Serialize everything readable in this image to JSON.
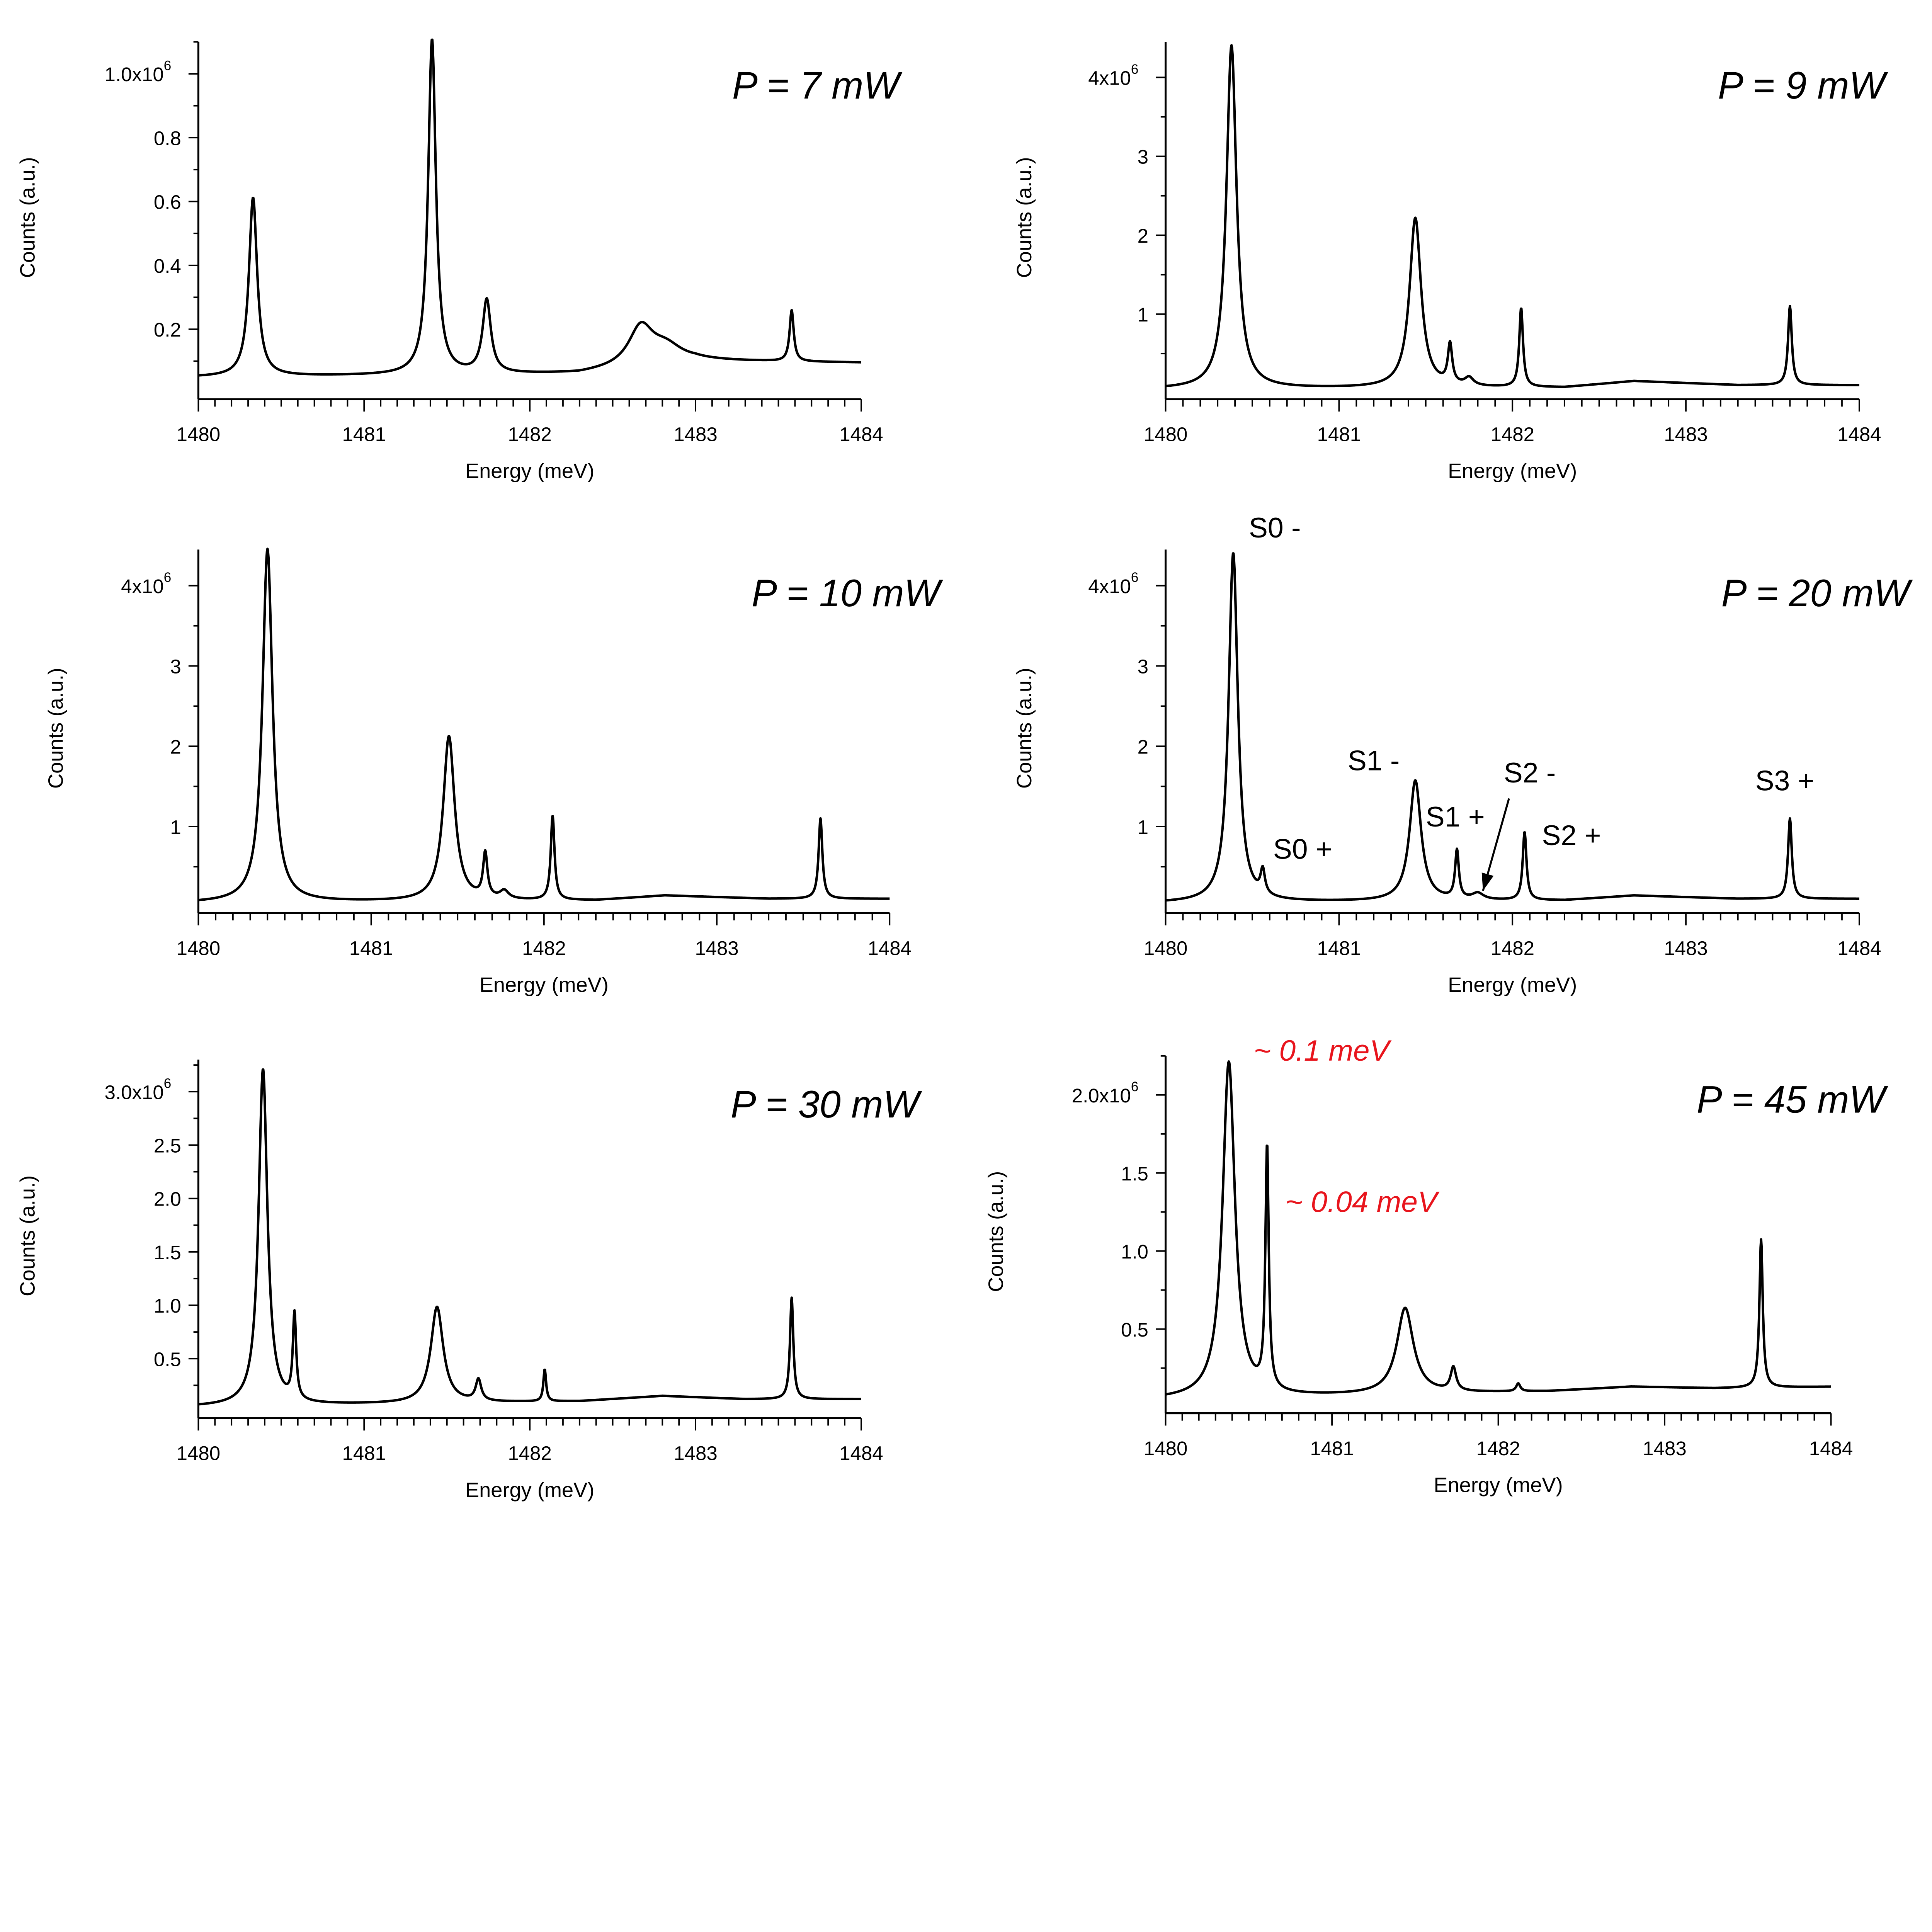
{
  "figure": {
    "colors": {
      "trace": "#000000",
      "annotation_red": "#e8141c"
    }
  },
  "chart_data": [
    {
      "type": "line",
      "title": "P = 7 mW",
      "xlabel": "Energy (meV)",
      "ylabel": "Counts (a.u.)",
      "xlim": [
        1480,
        1484
      ],
      "ylim": [
        0.0,
        1.1
      ],
      "x_ticks": [
        {
          "v": 1480,
          "label": "1480"
        },
        {
          "v": 1481,
          "label": "1481"
        },
        {
          "v": 1482,
          "label": "1482"
        },
        {
          "v": 1483,
          "label": "1483"
        },
        {
          "v": 1484,
          "label": "1484"
        }
      ],
      "y_ticks": [
        {
          "v": 0.2,
          "label": "0.2"
        },
        {
          "v": 0.4,
          "label": "0.4"
        },
        {
          "v": 0.6,
          "label": "0.6"
        },
        {
          "v": 0.8,
          "label": "0.8"
        },
        {
          "v": 1.0,
          "label": "1.0x10",
          "exp": "6"
        }
      ],
      "baseline": [
        [
          1480,
          0.05
        ],
        [
          1482.3,
          0.06
        ],
        [
          1483,
          0.1
        ],
        [
          1484,
          0.095
        ]
      ],
      "peaks": [
        {
          "x": 1480.33,
          "h": 0.56,
          "w": 0.03
        },
        {
          "x": 1481.41,
          "h": 1.05,
          "w": 0.028
        },
        {
          "x": 1481.74,
          "h": 0.23,
          "w": 0.03
        },
        {
          "x": 1482.67,
          "h": 0.12,
          "w": 0.09
        },
        {
          "x": 1482.82,
          "h": 0.05,
          "w": 0.12
        },
        {
          "x": 1483.58,
          "h": 0.16,
          "w": 0.015
        }
      ],
      "annotations": []
    },
    {
      "type": "line",
      "title": "P = 9 mW",
      "xlabel": "Energy (meV)",
      "ylabel": "Counts (a.u.)",
      "xlim": [
        1480,
        1484
      ],
      "ylim": [
        0.0,
        4.45
      ],
      "x_ticks": [
        {
          "v": 1480,
          "label": "1480"
        },
        {
          "v": 1481,
          "label": "1481"
        },
        {
          "v": 1482,
          "label": "1482"
        },
        {
          "v": 1483,
          "label": "1483"
        },
        {
          "v": 1484,
          "label": "1484"
        }
      ],
      "y_ticks": [
        {
          "v": 1,
          "label": "1"
        },
        {
          "v": 2,
          "label": "2"
        },
        {
          "v": 3,
          "label": "3"
        },
        {
          "v": 4,
          "label": "4x10",
          "exp": "6"
        }
      ],
      "baseline": [
        [
          1480,
          0.05
        ],
        [
          1482.3,
          0.07
        ],
        [
          1482.7,
          0.15
        ],
        [
          1483.3,
          0.1
        ],
        [
          1484,
          0.1
        ]
      ],
      "peaks": [
        {
          "x": 1480.38,
          "h": 4.35,
          "w": 0.035
        },
        {
          "x": 1481.44,
          "h": 2.15,
          "w": 0.04
        },
        {
          "x": 1481.64,
          "h": 0.5,
          "w": 0.015
        },
        {
          "x": 1481.75,
          "h": 0.1,
          "w": 0.03
        },
        {
          "x": 1482.05,
          "h": 1.0,
          "w": 0.013
        },
        {
          "x": 1483.6,
          "h": 1.0,
          "w": 0.013
        }
      ],
      "annotations": []
    },
    {
      "type": "line",
      "title": "P = 10 mW",
      "xlabel": "Energy (meV)",
      "ylabel": "Counts (a.u.)",
      "xlim": [
        1480,
        1484
      ],
      "ylim": [
        0.0,
        4.45
      ],
      "x_ticks": [
        {
          "v": 1480,
          "label": "1480"
        },
        {
          "v": 1481,
          "label": "1481"
        },
        {
          "v": 1482,
          "label": "1482"
        },
        {
          "v": 1483,
          "label": "1483"
        },
        {
          "v": 1484,
          "label": "1484"
        }
      ],
      "y_ticks": [
        {
          "v": 1,
          "label": "1"
        },
        {
          "v": 2,
          "label": "2"
        },
        {
          "v": 3,
          "label": "3"
        },
        {
          "v": 4,
          "label": "4x10",
          "exp": "6"
        }
      ],
      "baseline": [
        [
          1480,
          0.05
        ],
        [
          1482.3,
          0.08
        ],
        [
          1482.7,
          0.14
        ],
        [
          1483.3,
          0.1
        ],
        [
          1484,
          0.1
        ]
      ],
      "peaks": [
        {
          "x": 1480.4,
          "h": 4.4,
          "w": 0.035
        },
        {
          "x": 1481.45,
          "h": 2.05,
          "w": 0.04
        },
        {
          "x": 1481.66,
          "h": 0.55,
          "w": 0.015
        },
        {
          "x": 1481.77,
          "h": 0.1,
          "w": 0.03
        },
        {
          "x": 1482.05,
          "h": 1.05,
          "w": 0.013
        },
        {
          "x": 1483.6,
          "h": 1.0,
          "w": 0.013
        }
      ],
      "annotations": []
    },
    {
      "type": "line",
      "title": "P = 20 mW",
      "xlabel": "Energy (meV)",
      "ylabel": "Counts (a.u.)",
      "xlim": [
        1480,
        1484
      ],
      "ylim": [
        0.0,
        4.45
      ],
      "x_ticks": [
        {
          "v": 1480,
          "label": "1480"
        },
        {
          "v": 1481,
          "label": "1481"
        },
        {
          "v": 1482,
          "label": "1482"
        },
        {
          "v": 1483,
          "label": "1483"
        },
        {
          "v": 1484,
          "label": "1484"
        }
      ],
      "y_ticks": [
        {
          "v": 1,
          "label": "1"
        },
        {
          "v": 2,
          "label": "2"
        },
        {
          "v": 3,
          "label": "3"
        },
        {
          "v": 4,
          "label": "4x10",
          "exp": "6"
        }
      ],
      "baseline": [
        [
          1480,
          0.05
        ],
        [
          1482.3,
          0.08
        ],
        [
          1482.7,
          0.14
        ],
        [
          1483.3,
          0.1
        ],
        [
          1484,
          0.1
        ]
      ],
      "peaks": [
        {
          "x": 1480.39,
          "h": 4.35,
          "w": 0.032
        },
        {
          "x": 1480.56,
          "h": 0.3,
          "w": 0.015
        },
        {
          "x": 1481.44,
          "h": 1.5,
          "w": 0.04
        },
        {
          "x": 1481.68,
          "h": 0.6,
          "w": 0.013
        },
        {
          "x": 1481.8,
          "h": 0.08,
          "w": 0.04
        },
        {
          "x": 1482.07,
          "h": 0.85,
          "w": 0.013
        },
        {
          "x": 1483.6,
          "h": 1.0,
          "w": 0.013
        }
      ],
      "annotations": [
        {
          "text": "S0 -",
          "x": 1480.48,
          "y": 4.6
        },
        {
          "text": "S0 +",
          "x": 1480.62,
          "y": 0.6
        },
        {
          "text": "S1 -",
          "x": 1481.05,
          "y": 1.7
        },
        {
          "text": "S1 +",
          "x": 1481.5,
          "y": 1.0
        },
        {
          "text": "S2 -",
          "x": 1481.95,
          "y": 1.55
        },
        {
          "text": "S2 +",
          "x": 1482.17,
          "y": 0.77
        },
        {
          "text": "S3 +",
          "x": 1483.4,
          "y": 1.45
        }
      ],
      "arrow": {
        "from": [
          1481.98,
          1.35
        ],
        "to": [
          1481.83,
          0.2
        ]
      }
    },
    {
      "type": "line",
      "title": "P = 30 mW",
      "xlabel": "Energy (meV)",
      "ylabel": "Counts (a.u.)",
      "xlim": [
        1480,
        1484
      ],
      "ylim": [
        0.0,
        3.3
      ],
      "x_ticks": [
        {
          "v": 1480,
          "label": "1480"
        },
        {
          "v": 1481,
          "label": "1481"
        },
        {
          "v": 1482,
          "label": "1482"
        },
        {
          "v": 1483,
          "label": "1483"
        },
        {
          "v": 1484,
          "label": "1484"
        }
      ],
      "y_ticks": [
        {
          "v": 0.5,
          "label": "0.5"
        },
        {
          "v": 1.0,
          "label": "1.0"
        },
        {
          "v": 1.5,
          "label": "1.5"
        },
        {
          "v": 2.0,
          "label": "2.0"
        },
        {
          "v": 2.5,
          "label": "2.5"
        },
        {
          "v": 3.0,
          "label": "3.0x10",
          "exp": "6"
        }
      ],
      "baseline": [
        [
          1480,
          0.05
        ],
        [
          1482.3,
          0.1
        ],
        [
          1482.8,
          0.15
        ],
        [
          1483.3,
          0.12
        ],
        [
          1484,
          0.12
        ]
      ],
      "peaks": [
        {
          "x": 1480.39,
          "h": 3.15,
          "w": 0.032
        },
        {
          "x": 1480.58,
          "h": 0.8,
          "w": 0.012
        },
        {
          "x": 1481.44,
          "h": 0.9,
          "w": 0.045
        },
        {
          "x": 1481.69,
          "h": 0.2,
          "w": 0.02
        },
        {
          "x": 1482.09,
          "h": 0.3,
          "w": 0.01
        },
        {
          "x": 1483.58,
          "h": 0.95,
          "w": 0.012
        }
      ],
      "annotations": []
    },
    {
      "type": "line",
      "title": "P = 45 mW",
      "xlabel": "Energy (meV)",
      "ylabel": "Counts (a.u.)",
      "xlim": [
        1480,
        1484
      ],
      "ylim": [
        0.0,
        2.25
      ],
      "x_ticks": [
        {
          "v": 1480,
          "label": "1480"
        },
        {
          "v": 1481,
          "label": "1481"
        },
        {
          "v": 1482,
          "label": "1482"
        },
        {
          "v": 1483,
          "label": "1483"
        },
        {
          "v": 1484,
          "label": "1484"
        }
      ],
      "y_ticks": [
        {
          "v": 0.5,
          "label": "0.5"
        },
        {
          "v": 1.0,
          "label": "1.0"
        },
        {
          "v": 1.5,
          "label": "1.5"
        },
        {
          "v": 2.0,
          "label": "2.0x10",
          "exp": "6"
        }
      ],
      "baseline": [
        [
          1480,
          0.05
        ],
        [
          1482.3,
          0.1
        ],
        [
          1482.8,
          0.13
        ],
        [
          1483.3,
          0.12
        ],
        [
          1484,
          0.13
        ]
      ],
      "peaks": [
        {
          "x": 1480.38,
          "h": 2.15,
          "w": 0.045
        },
        {
          "x": 1480.61,
          "h": 1.55,
          "w": 0.012
        },
        {
          "x": 1481.44,
          "h": 0.55,
          "w": 0.06
        },
        {
          "x": 1481.73,
          "h": 0.15,
          "w": 0.02
        },
        {
          "x": 1482.12,
          "h": 0.05,
          "w": 0.015
        },
        {
          "x": 1483.58,
          "h": 0.95,
          "w": 0.012
        }
      ],
      "annotations": [
        {
          "text": "~ 0.1 meV",
          "x": 1480.53,
          "y": 2.22,
          "color": "red"
        },
        {
          "text": "~ 0.04 meV",
          "x": 1480.72,
          "y": 1.25,
          "color": "red"
        }
      ]
    }
  ]
}
